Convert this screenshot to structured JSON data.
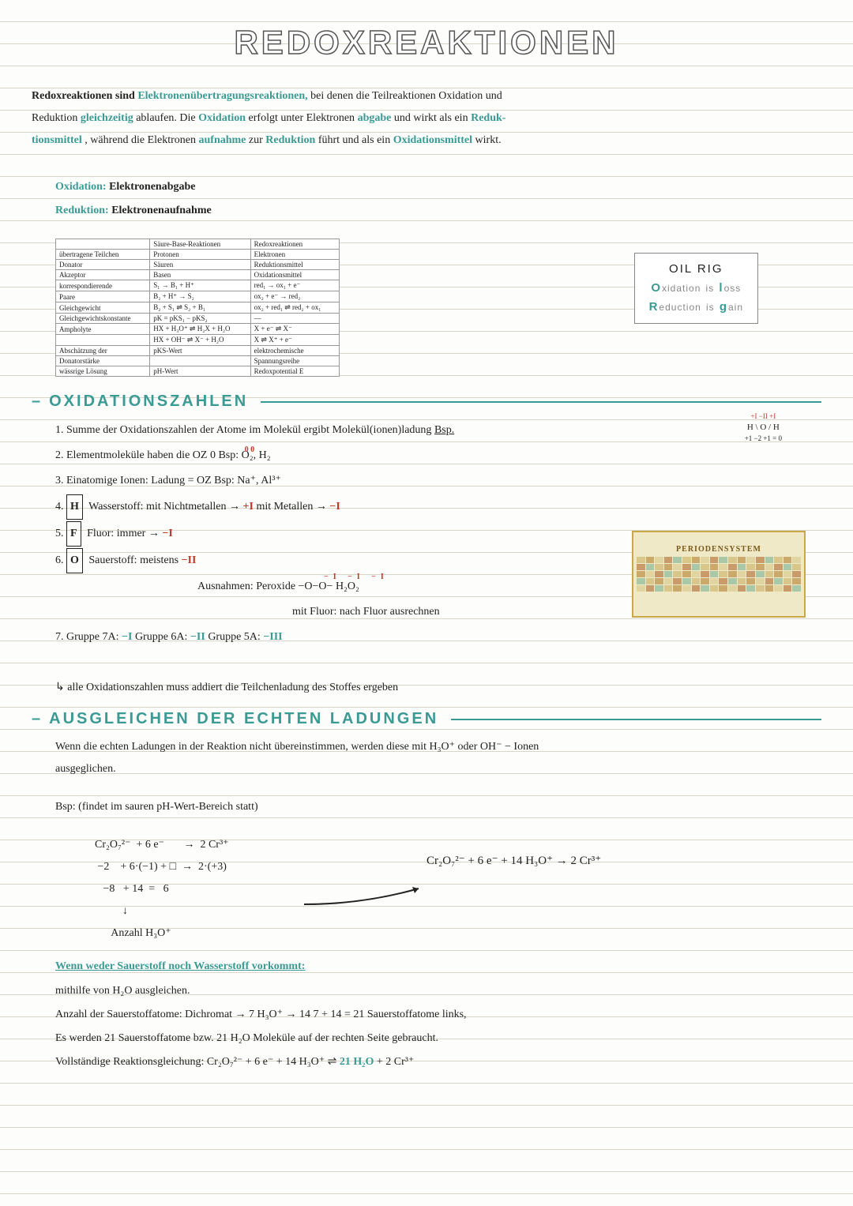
{
  "title": "REDOXREAKTIONEN",
  "intro": {
    "p1a": "Redoxreaktionen sind ",
    "kw1": "Elektronenübertragungsreaktionen,",
    "p1b": " bei denen die Teilreaktionen Oxidation und",
    "p2a": "Reduktion ",
    "kw2": "gleichzeitig",
    "p2b": " ablaufen. Die ",
    "kw3": "Oxidation",
    "p2c": " erfolgt unter Elektronen",
    "kw4": "abgabe",
    "p2d": " und wirkt als ein ",
    "kw5": "Reduk-",
    "p3a": "tionsmittel",
    "p3b": ", während die Elektronen",
    "kw6": "aufnahme",
    "p3c": " zur ",
    "kw7": "Reduktion",
    "p3d": " führt und als ein ",
    "kw8": "Oxidationsmittel",
    "p3e": " wirkt."
  },
  "defs": {
    "ox_label": "Oxidation:",
    "ox_val": "Elektronenabgabe",
    "red_label": "Reduktion:",
    "red_val": "Elektronenaufnahme"
  },
  "table": {
    "h1": "",
    "h2": "Säure-Base-Reaktionen",
    "h3": "Redoxreaktionen",
    "rows": [
      [
        "übertragene Teilchen",
        "Protonen",
        "Elektronen"
      ],
      [
        "Donator",
        "Säuren",
        "Reduktionsmittel"
      ],
      [
        "Akzeptor",
        "Basen",
        "Oxidationsmittel"
      ],
      [
        "korrespondierende",
        "S₁ → B₁ + H⁺",
        "red₁ → ox₁ + e⁻"
      ],
      [
        "Paare",
        "B₂ + H⁺ → S₂",
        "ox₂ + e⁻ → red₂"
      ],
      [
        "Gleichgewicht",
        "B₂ + S₁ ⇌ S₂ + B₁",
        "ox₂ + red₁ ⇌ red₂ + ox₁"
      ],
      [
        "Gleichgewichtskonstante",
        "pK = pKS₁ − pKS₂",
        "—"
      ],
      [
        "Ampholyte",
        "HX + H₃O⁺ ⇌ H₂X + H₂O",
        "X + e⁻ ⇌ X⁻"
      ],
      [
        "",
        "HX + OH⁻ ⇌ X⁻ + H₂O",
        "X ⇌ X⁺ + e⁻"
      ],
      [
        "Abschätzung der",
        "pKS-Wert",
        "elektrochemische"
      ],
      [
        "Donatorstärke",
        "",
        "Spannungsreihe"
      ],
      [
        "wässrige Lösung",
        "pH-Wert",
        "Redoxpotential E"
      ]
    ]
  },
  "oilrig": {
    "title": "OIL  RIG",
    "l1a": "O",
    "l1b": "xidation",
    "l1c": "is",
    "l1d": "l",
    "l1e": "oss",
    "l2a": "R",
    "l2b": "eduction",
    "l2c": "is",
    "l2d": "g",
    "l2e": "ain"
  },
  "sec1": "OXIDATIONSZAHLEN",
  "rules": {
    "r1": "1. Summe der Oxidationszahlen der Atome im Molekül ergibt Molekül(ionen)ladung",
    "r1b": "Bsp.",
    "r2a": "2. Elementmoleküle haben die OZ 0    Bsp:  ",
    "r2b": "O₂, H₂",
    "r2oz": "0   0",
    "r3": "3. Einatomige Ionen: Ladung = OZ   Bsp: Na⁺, Al³⁺",
    "r4a": "4. ",
    "r4box": "H",
    "r4b": " Wasserstoff: mit Nichtmetallen → ",
    "r4p": "+I",
    "r4c": "    mit Metallen → ",
    "r4n": "−I",
    "r5a": "5. ",
    "r5box": "F",
    "r5b": " Fluor: immer → ",
    "r5n": "−I",
    "r6a": "6. ",
    "r6box": "O",
    "r6b": " Sauerstoff: meistens ",
    "r6n": "−II",
    "r6c": "Ausnahmen:   Peroxide  −O−O−  H₂O₂",
    "r6oz": "−I  −I        −I",
    "r6d": "mit Fluor: nach Fluor ausrechnen",
    "r7a": "7.  Gruppe 7A: ",
    "r7n1": "−I",
    "r7b": "    Gruppe 6A: ",
    "r7n2": "−II",
    "r7c": "    Gruppe 5A: ",
    "r7n3": "−III"
  },
  "example_h2o": {
    "top": "+I  −II  +I",
    "mid": "H \\ O / H",
    "sum": "+1 −2 +1 = 0"
  },
  "note": "alle Oxidationszahlen muss addiert die Teilchenladung des Stoffes ergeben",
  "sec2": "AUSGLEICHEN DER ECHTEN LADUNGEN",
  "para2a": "Wenn die echten Ladungen in der Reaktion nicht übereinstimmen, werden diese mit H₃O⁺ oder OH⁻ − Ionen",
  "para2b": "ausgeglichen.",
  "bsp_label": "Bsp:   (findet im sauren pH-Wert-Bereich statt)",
  "eq": {
    "l1": "Cr₂O₇²⁻  + 6 e⁻       →  2 Cr³⁺",
    "l2": " −2    + 6·(−1) + □  →  2·(+3)",
    "l3": "   −8   + 14  =   6",
    "l4": "          ↓",
    "l5": "      Anzahl H₃O⁺",
    "result": "Cr₂O₇²⁻ + 6 e⁻ + 14 H₃O⁺  →  2 Cr³⁺"
  },
  "sub_h": "Wenn weder Sauerstoff noch Wasserstoff vorkommt:",
  "bal": {
    "l1": "mithilfe von H₂O ausgleichen.",
    "l2": "Anzahl der Sauerstoffatome:    Dichromat → 7    H₃O⁺ → 14    7 + 14 = 21  Sauerstoffatome links,",
    "l3": "Es werden 21 Sauerstoffatome bzw. 21 H₂O Moleküle auf der rechten Seite gebraucht.",
    "l4a": "Vollständige Reaktionsgleichung:    Cr₂O₇²⁻ + 6 e⁻ + 14 H₃O⁺  ⇌  ",
    "l4b": "21 H₂O",
    "l4c": " + 2 Cr³⁺"
  },
  "pt_title": "PERIODENSYSTEM",
  "colors": {
    "teal": "#3a9a94",
    "red": "#c0392b",
    "line": "#d9d5ca",
    "bg": "#fdfdfb"
  }
}
